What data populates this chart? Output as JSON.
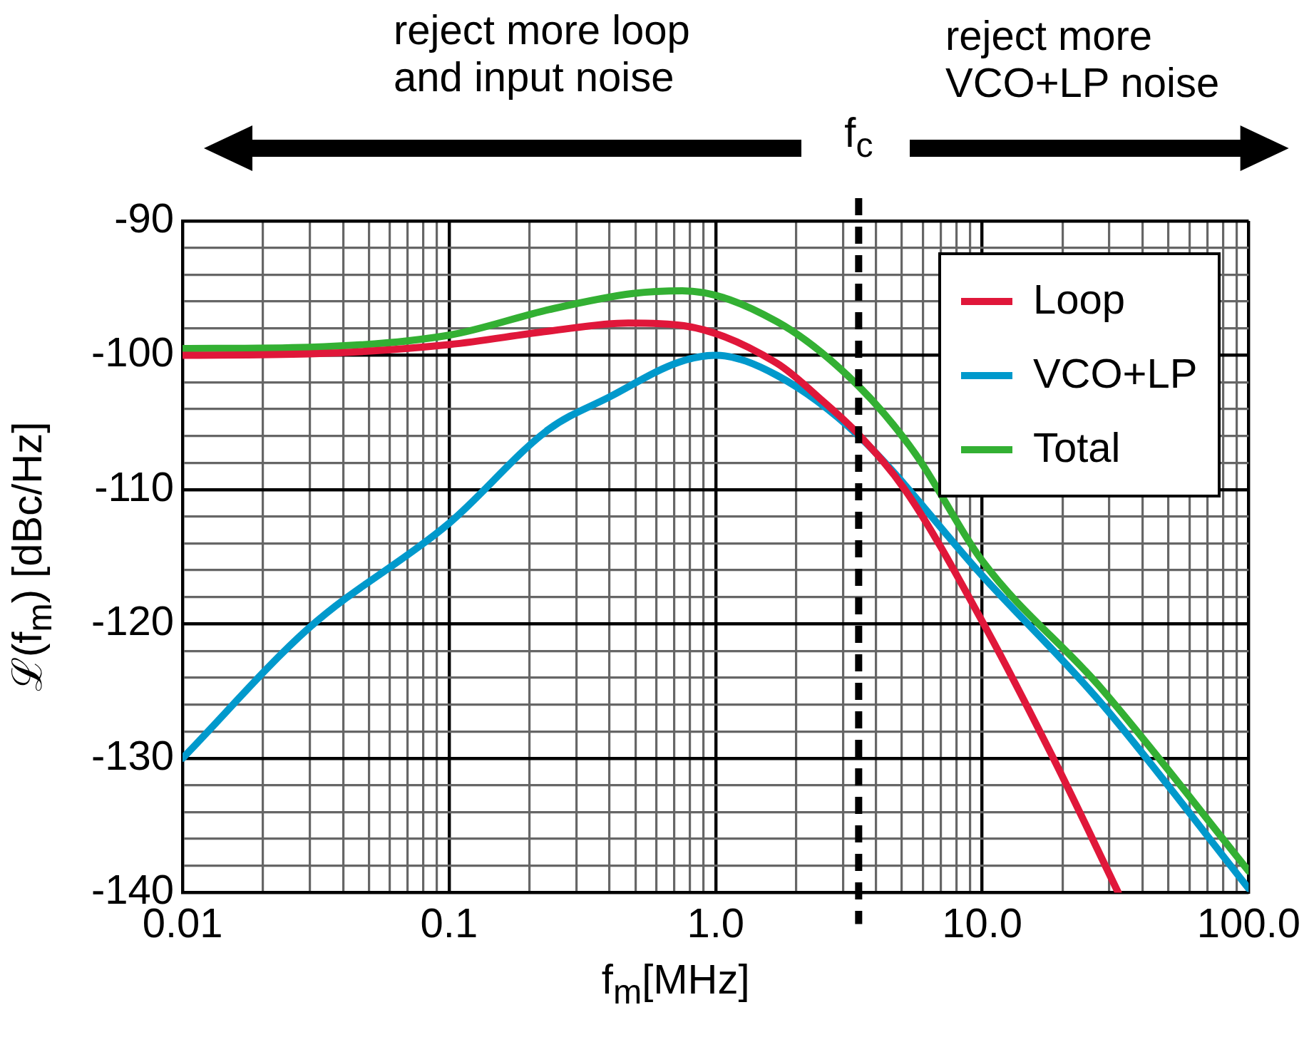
{
  "chart_data": {
    "type": "line",
    "xlabel": "f$_{m}$[MHz]",
    "ylabel": "ℒ(f$_{m}$) [dBc/Hz]",
    "log": "x",
    "grid": true,
    "legend": "top right",
    "marker": "none",
    "line_style": "solid",
    "xlim": [
      0.01,
      100
    ],
    "ylim": [
      -140,
      -90
    ],
    "xticks": [
      {
        "value": 0.01,
        "label": "0.01"
      },
      {
        "value": 0.02,
        "label": null
      },
      {
        "value": 0.03,
        "label": null
      },
      {
        "value": 0.04,
        "label": null
      },
      {
        "value": 0.05,
        "label": null
      },
      {
        "value": 0.06,
        "label": null
      },
      {
        "value": 0.07,
        "label": null
      },
      {
        "value": 0.08,
        "label": null
      },
      {
        "value": 0.09,
        "label": null
      },
      {
        "value": 0.1,
        "label": "0.1"
      },
      {
        "value": 0.2,
        "label": null
      },
      {
        "value": 0.3,
        "label": null
      },
      {
        "value": 0.4,
        "label": null
      },
      {
        "value": 0.5,
        "label": null
      },
      {
        "value": 0.6,
        "label": null
      },
      {
        "value": 0.7,
        "label": null
      },
      {
        "value": 0.8,
        "label": null
      },
      {
        "value": 0.9,
        "label": null
      },
      {
        "value": 1,
        "label": "1.0"
      },
      {
        "value": 2,
        "label": null
      },
      {
        "value": 3,
        "label": null
      },
      {
        "value": 4,
        "label": null
      },
      {
        "value": 5,
        "label": null
      },
      {
        "value": 6,
        "label": null
      },
      {
        "value": 7,
        "label": null
      },
      {
        "value": 8,
        "label": null
      },
      {
        "value": 9,
        "label": null
      },
      {
        "value": 10,
        "label": "10.0"
      },
      {
        "value": 20,
        "label": null
      },
      {
        "value": 30,
        "label": null
      },
      {
        "value": 40,
        "label": null
      },
      {
        "value": 50,
        "label": null
      },
      {
        "value": 60,
        "label": null
      },
      {
        "value": 70,
        "label": null
      },
      {
        "value": 80,
        "label": null
      },
      {
        "value": 90,
        "label": null
      },
      {
        "value": 100,
        "label": "100.0"
      }
    ],
    "yticks": [
      -140,
      {
        "value": -138,
        "label": null
      },
      {
        "value": -136,
        "label": null
      },
      {
        "value": -134,
        "label": null
      },
      {
        "value": -132,
        "label": null
      },
      -130,
      {
        "value": -128,
        "label": null
      },
      {
        "value": -126,
        "label": null
      },
      {
        "value": -124,
        "label": null
      },
      {
        "value": -122,
        "label": null
      },
      -120,
      {
        "value": -118,
        "label": null
      },
      {
        "value": -116,
        "label": null
      },
      {
        "value": -114,
        "label": null
      },
      {
        "value": -112,
        "label": null
      },
      -110,
      {
        "value": -108,
        "label": null
      },
      {
        "value": -106,
        "label": null
      },
      {
        "value": -104,
        "label": null
      },
      {
        "value": -102,
        "label": null
      },
      -100,
      {
        "value": -98,
        "label": null
      },
      {
        "value": -96,
        "label": null
      },
      {
        "value": -94,
        "label": null
      },
      {
        "value": -92,
        "label": null
      },
      -90
    ],
    "series": [
      {
        "name": "Loop",
        "color": "#e0173a",
        "x": [
          0.01,
          0.03,
          0.1,
          0.237,
          0.47,
          0.76,
          1.7,
          2.52,
          3.44,
          5.17,
          10,
          18.6,
          32.4
        ],
        "values": [
          -100,
          -99.9,
          -99.2,
          -98.2,
          -97.6,
          -97.8,
          -100.6,
          -103.4,
          -105.9,
          -110.1,
          -119.8,
          -130.1,
          -140
        ]
      },
      {
        "name": "VCO+LP",
        "color": "#0099cc",
        "x": [
          0.01,
          0.0298,
          0.1,
          0.237,
          0.4,
          0.73,
          1,
          1.7,
          3.44,
          10,
          27.7,
          100
        ],
        "values": [
          -130,
          -120.3,
          -112.5,
          -105.5,
          -103.1,
          -100.5,
          -100,
          -101.5,
          -106,
          -116.4,
          -125.8,
          -139.7
        ]
      },
      {
        "name": "Total",
        "color": "#33b033",
        "x": [
          0.01,
          0.03,
          0.1,
          0.237,
          0.49,
          0.75,
          1.7,
          3.44,
          5.6,
          10,
          27.7,
          100
        ],
        "values": [
          -99.5,
          -99.4,
          -98.5,
          -96.6,
          -95.4,
          -95.2,
          -97.5,
          -102.3,
          -107.3,
          -115.3,
          -124.7,
          -138.4
        ]
      }
    ],
    "ref_lines": [
      {
        "axis": "x",
        "value": 3.44,
        "label": "f$_{c}$",
        "color": "#000000",
        "line_style": "dashed"
      }
    ],
    "annotations": [
      "reject more loop and input noise",
      "reject more VCO+LP noise"
    ]
  }
}
